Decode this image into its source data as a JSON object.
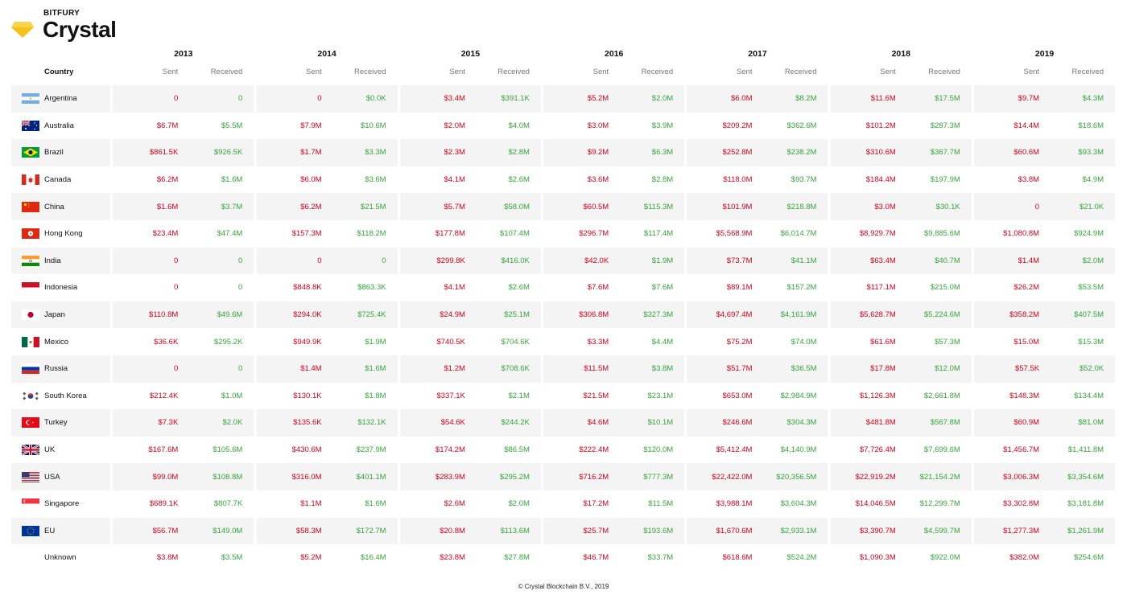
{
  "brand": {
    "small": "BITFURY",
    "name": "Crystal",
    "icon": "crystal-diamond-logo",
    "accent": "#f5c21b"
  },
  "table": {
    "country_header": "Country",
    "sent_header": "Sent",
    "received_header": "Received",
    "years": [
      "2013",
      "2014",
      "2015",
      "2016",
      "2017",
      "2018",
      "2019"
    ],
    "colors": {
      "sent": "#d0021b",
      "received": "#34a63a",
      "row_shade": "#f4f4f4"
    },
    "rows": [
      {
        "country": "Argentina",
        "flag": "flag-argentina",
        "values": [
          [
            "0",
            "0"
          ],
          [
            "0",
            "$0.0K"
          ],
          [
            "$3.4M",
            "$391.1K"
          ],
          [
            "$5.2M",
            "$2.0M"
          ],
          [
            "$6.0M",
            "$8.2M"
          ],
          [
            "$11.6M",
            "$17.5M"
          ],
          [
            "$9.7M",
            "$4.3M"
          ]
        ]
      },
      {
        "country": "Australia",
        "flag": "flag-australia",
        "values": [
          [
            "$6.7M",
            "$5.5M"
          ],
          [
            "$7.9M",
            "$10.6M"
          ],
          [
            "$2.0M",
            "$4.0M"
          ],
          [
            "$3.0M",
            "$3.9M"
          ],
          [
            "$209.2M",
            "$362.6M"
          ],
          [
            "$101.2M",
            "$287.3M"
          ],
          [
            "$14.4M",
            "$18.6M"
          ]
        ]
      },
      {
        "country": "Brazil",
        "flag": "flag-brazil",
        "values": [
          [
            "$861.5K",
            "$926.5K"
          ],
          [
            "$1.7M",
            "$3.3M"
          ],
          [
            "$2.3M",
            "$2.8M"
          ],
          [
            "$9.2M",
            "$6.3M"
          ],
          [
            "$252.8M",
            "$238.2M"
          ],
          [
            "$310.6M",
            "$367.7M"
          ],
          [
            "$60.6M",
            "$93.3M"
          ]
        ]
      },
      {
        "country": "Canada",
        "flag": "flag-canada",
        "values": [
          [
            "$6.2M",
            "$1.6M"
          ],
          [
            "$6.0M",
            "$3.6M"
          ],
          [
            "$4.1M",
            "$2.6M"
          ],
          [
            "$3.6M",
            "$2.8M"
          ],
          [
            "$118.0M",
            "$93.7M"
          ],
          [
            "$184.4M",
            "$197.9M"
          ],
          [
            "$3.8M",
            "$4.9M"
          ]
        ]
      },
      {
        "country": "China",
        "flag": "flag-china",
        "values": [
          [
            "$1.6M",
            "$3.7M"
          ],
          [
            "$6.2M",
            "$21.5M"
          ],
          [
            "$5.7M",
            "$58.0M"
          ],
          [
            "$60.5M",
            "$115.3M"
          ],
          [
            "$101.9M",
            "$218.8M"
          ],
          [
            "$3.0M",
            "$30.1K"
          ],
          [
            "0",
            "$21.0K"
          ]
        ]
      },
      {
        "country": "Hong Kong",
        "flag": "flag-hong-kong",
        "values": [
          [
            "$23.4M",
            "$47.4M"
          ],
          [
            "$157.3M",
            "$118.2M"
          ],
          [
            "$177.8M",
            "$107.4M"
          ],
          [
            "$296.7M",
            "$117.4M"
          ],
          [
            "$5,568.9M",
            "$6,014.7M"
          ],
          [
            "$8,929.7M",
            "$9,885.6M"
          ],
          [
            "$1,080.8M",
            "$924.9M"
          ]
        ]
      },
      {
        "country": "India",
        "flag": "flag-india",
        "values": [
          [
            "0",
            "0"
          ],
          [
            "0",
            "0"
          ],
          [
            "$299.8K",
            "$416.0K"
          ],
          [
            "$42.0K",
            "$1.9M"
          ],
          [
            "$73.7M",
            "$41.1M"
          ],
          [
            "$63.4M",
            "$40.7M"
          ],
          [
            "$1.4M",
            "$2.0M"
          ]
        ]
      },
      {
        "country": "Indonesia",
        "flag": "flag-indonesia",
        "values": [
          [
            "0",
            "0"
          ],
          [
            "$848.8K",
            "$863.3K"
          ],
          [
            "$4.1M",
            "$2.6M"
          ],
          [
            "$7.6M",
            "$7.6M"
          ],
          [
            "$89.1M",
            "$157.2M"
          ],
          [
            "$117.1M",
            "$215.0M"
          ],
          [
            "$26.2M",
            "$53.5M"
          ]
        ]
      },
      {
        "country": "Japan",
        "flag": "flag-japan",
        "values": [
          [
            "$110.8M",
            "$49.6M"
          ],
          [
            "$294.0K",
            "$725.4K"
          ],
          [
            "$24.9M",
            "$25.1M"
          ],
          [
            "$306.8M",
            "$327.3M"
          ],
          [
            "$4,697.4M",
            "$4,161.9M"
          ],
          [
            "$5,628.7M",
            "$5,224.6M"
          ],
          [
            "$358.2M",
            "$407.5M"
          ]
        ]
      },
      {
        "country": "Mexico",
        "flag": "flag-mexico",
        "values": [
          [
            "$36.6K",
            "$295.2K"
          ],
          [
            "$949.9K",
            "$1.9M"
          ],
          [
            "$740.5K",
            "$704.6K"
          ],
          [
            "$3.3M",
            "$4.4M"
          ],
          [
            "$75.2M",
            "$74.0M"
          ],
          [
            "$61.6M",
            "$57.3M"
          ],
          [
            "$15.0M",
            "$15.3M"
          ]
        ]
      },
      {
        "country": "Russia",
        "flag": "flag-russia",
        "values": [
          [
            "0",
            "0"
          ],
          [
            "$1.4M",
            "$1.6M"
          ],
          [
            "$1.2M",
            "$708.6K"
          ],
          [
            "$11.5M",
            "$3.8M"
          ],
          [
            "$51.7M",
            "$36.5M"
          ],
          [
            "$17.8M",
            "$12.0M"
          ],
          [
            "$57.5K",
            "$52.0K"
          ]
        ]
      },
      {
        "country": "South Korea",
        "flag": "flag-south-korea",
        "values": [
          [
            "$212.4K",
            "$1.0M"
          ],
          [
            "$130.1K",
            "$1.8M"
          ],
          [
            "$337.1K",
            "$2.1M"
          ],
          [
            "$21.5M",
            "$23.1M"
          ],
          [
            "$653.0M",
            "$2,984.9M"
          ],
          [
            "$1,126.3M",
            "$2,661.8M"
          ],
          [
            "$148.3M",
            "$134.4M"
          ]
        ]
      },
      {
        "country": "Turkey",
        "flag": "flag-turkey",
        "values": [
          [
            "$7.3K",
            "$2.0K"
          ],
          [
            "$135.6K",
            "$132.1K"
          ],
          [
            "$54.6K",
            "$244.2K"
          ],
          [
            "$4.6M",
            "$10.1M"
          ],
          [
            "$246.6M",
            "$304.3M"
          ],
          [
            "$481.8M",
            "$567.8M"
          ],
          [
            "$60.9M",
            "$81.0M"
          ]
        ]
      },
      {
        "country": "UK",
        "flag": "flag-uk",
        "values": [
          [
            "$167.6M",
            "$105.6M"
          ],
          [
            "$430.6M",
            "$237.9M"
          ],
          [
            "$174.2M",
            "$86.5M"
          ],
          [
            "$222.4M",
            "$120.0M"
          ],
          [
            "$5,412.4M",
            "$4,140.9M"
          ],
          [
            "$7,726.4M",
            "$7,699.6M"
          ],
          [
            "$1,456.7M",
            "$1,411.8M"
          ]
        ]
      },
      {
        "country": "USA",
        "flag": "flag-usa",
        "values": [
          [
            "$99.0M",
            "$108.8M"
          ],
          [
            "$316.0M",
            "$401.1M"
          ],
          [
            "$283.9M",
            "$295.2M"
          ],
          [
            "$716.2M",
            "$777.3M"
          ],
          [
            "$22,422.0M",
            "$20,356.5M"
          ],
          [
            "$22,919.2M",
            "$21,154.2M"
          ],
          [
            "$3,006.3M",
            "$3,354.6M"
          ]
        ]
      },
      {
        "country": "Singapore",
        "flag": "flag-singapore",
        "values": [
          [
            "$689.1K",
            "$807.7K"
          ],
          [
            "$1.1M",
            "$1.6M"
          ],
          [
            "$2.6M",
            "$2.0M"
          ],
          [
            "$17.2M",
            "$11.5M"
          ],
          [
            "$3,988.1M",
            "$3,604.3M"
          ],
          [
            "$14,046.5M",
            "$12,299.7M"
          ],
          [
            "$3,302.8M",
            "$3,181.8M"
          ]
        ]
      },
      {
        "country": "EU",
        "flag": "flag-eu",
        "values": [
          [
            "$56.7M",
            "$149.0M"
          ],
          [
            "$58.3M",
            "$172.7M"
          ],
          [
            "$20.8M",
            "$113.6M"
          ],
          [
            "$25.7M",
            "$193.6M"
          ],
          [
            "$1,670.6M",
            "$2,933.1M"
          ],
          [
            "$3,390.7M",
            "$4,599.7M"
          ],
          [
            "$1,277.3M",
            "$1,261.9M"
          ]
        ]
      },
      {
        "country": "Unknown",
        "flag": "",
        "values": [
          [
            "$3.8M",
            "$3.5M"
          ],
          [
            "$5.2M",
            "$16.4M"
          ],
          [
            "$23.8M",
            "$27.8M"
          ],
          [
            "$46.7M",
            "$33.7M"
          ],
          [
            "$618.6M",
            "$524.2M"
          ],
          [
            "$1,090.3M",
            "$922.0M"
          ],
          [
            "$382.0M",
            "$254.6M"
          ]
        ]
      }
    ]
  },
  "footer": {
    "text": "© Crystal Blockchain B.V., 2019"
  }
}
